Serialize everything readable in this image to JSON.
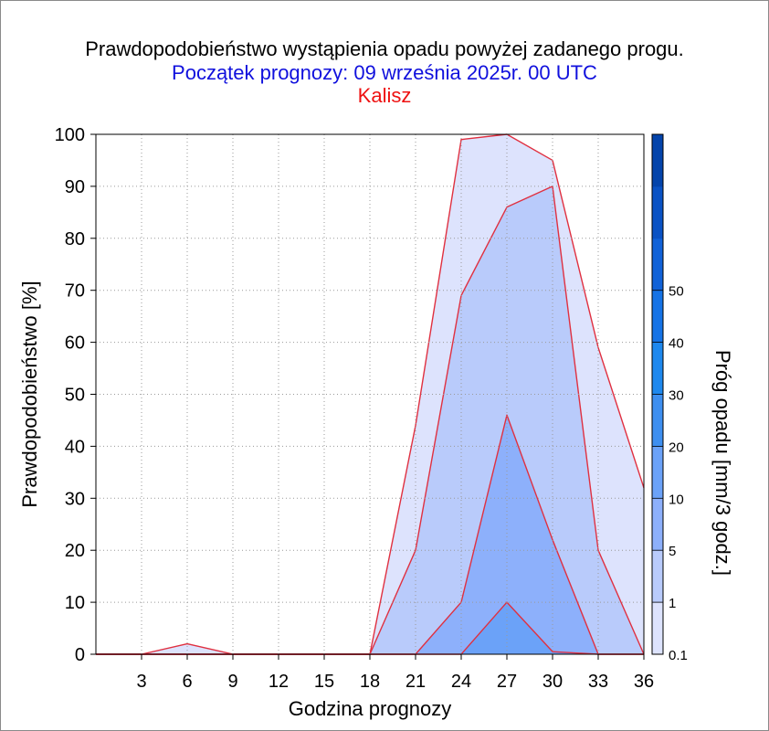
{
  "header": {
    "title": "Prawdopodobieństwo wystąpienia opadu powyżej zadanego progu.",
    "subtitle": "Początek prognozy: 09 września 2025r. 00 UTC",
    "location": "Kalisz"
  },
  "colors": {
    "title": "#000000",
    "subtitle": "#1010dd",
    "location": "#ee1111",
    "outline": "#e03040",
    "grid": "#9a9a9a"
  },
  "chart_data": {
    "type": "area",
    "xlabel": "Godzina prognozy",
    "ylabel": "Prawdopodobieństwo [%]",
    "colorbar_label": "Próg opadu [mm/3 godz.]",
    "xlim": [
      0,
      36
    ],
    "ylim": [
      0,
      100
    ],
    "x_ticks": [
      3,
      6,
      9,
      12,
      15,
      18,
      21,
      24,
      27,
      30,
      33,
      36
    ],
    "y_ticks": [
      0,
      10,
      20,
      30,
      40,
      50,
      60,
      70,
      80,
      90,
      100
    ],
    "grid": true,
    "x": [
      0,
      3,
      6,
      9,
      12,
      15,
      18,
      21,
      24,
      27,
      30,
      33,
      36
    ],
    "series": [
      {
        "name": "0.1",
        "color": "#dde3fd",
        "values": [
          0,
          0,
          2,
          0,
          0,
          0,
          0,
          44,
          99,
          100,
          95,
          59,
          32
        ]
      },
      {
        "name": "1",
        "color": "#b9cbfb",
        "values": [
          0,
          0,
          0,
          0,
          0,
          0,
          0,
          20,
          69,
          86,
          90,
          20,
          0
        ]
      },
      {
        "name": "5",
        "color": "#8db0fb",
        "values": [
          0,
          0,
          0,
          0,
          0,
          0,
          0,
          0,
          10,
          46,
          22,
          0,
          0
        ]
      },
      {
        "name": "10",
        "color": "#6ba2f8",
        "values": [
          0,
          0,
          0,
          0,
          0,
          0,
          0,
          0,
          0,
          10,
          0.5,
          0,
          0
        ]
      }
    ],
    "colorbar": {
      "labels": [
        "0.1",
        "1",
        "5",
        "10",
        "20",
        "30",
        "40",
        "50"
      ],
      "colors": [
        "#dde3fd",
        "#b9cbfb",
        "#8db0fb",
        "#6ba2f8",
        "#3e8ff0",
        "#1e88ee",
        "#1573e6",
        "#1162d8",
        "#0a52c4",
        "#0444ab"
      ]
    }
  }
}
